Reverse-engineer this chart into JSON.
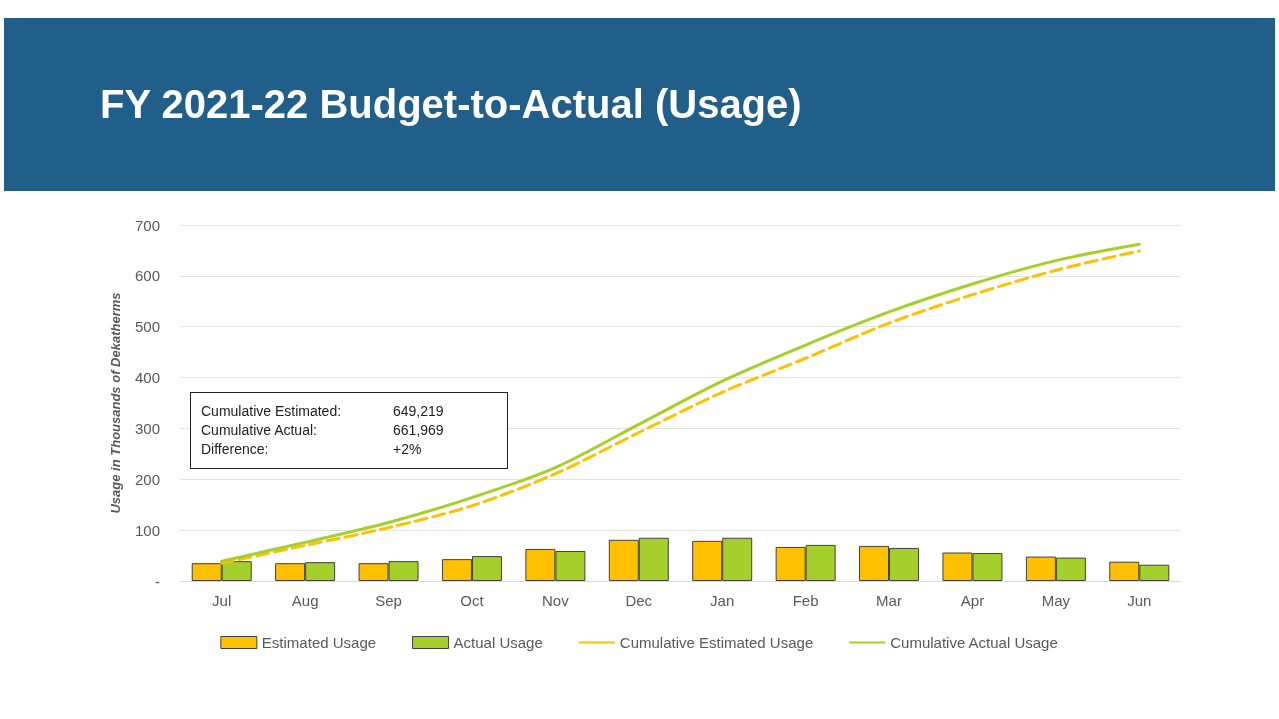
{
  "chart_data": {
    "type": "bar",
    "title": "FY 2021-22 Budget-to-Actual (Usage)",
    "ylabel": "Usage in Thousands of Dekatherms",
    "categories": [
      "Jul",
      "Aug",
      "Sep",
      "Oct",
      "Nov",
      "Dec",
      "Jan",
      "Feb",
      "Mar",
      "Apr",
      "May",
      "Jun"
    ],
    "series": [
      {
        "name": "Estimated Usage",
        "color": "#ffc000",
        "values": [
          35,
          35,
          35,
          43,
          63,
          81,
          79,
          67,
          69,
          56,
          48,
          38
        ]
      },
      {
        "name": "Actual Usage",
        "color": "#a5cf2a",
        "values": [
          39,
          37,
          39,
          49,
          59,
          85,
          85,
          71,
          65,
          55,
          46,
          32
        ]
      },
      {
        "name": "Cumulative Estimated Usage",
        "type": "line",
        "line_style": "dashed",
        "color": "#ffc000",
        "values": [
          35,
          70,
          105,
          148,
          211,
          292,
          371,
          438,
          507,
          563,
          611,
          649
        ]
      },
      {
        "name": "Cumulative Actual Usage",
        "type": "line",
        "line_style": "solid",
        "color": "#a5cf2a",
        "values": [
          39,
          76,
          115,
          164,
          223,
          308,
          393,
          464,
          529,
          584,
          630,
          662
        ]
      }
    ],
    "ylim": [
      0,
      700
    ],
    "yticks": [
      {
        "value": 0,
        "label": "-"
      },
      100,
      200,
      300,
      400,
      500,
      600,
      700
    ],
    "grid": "y",
    "legend": "bottom",
    "marker": "none",
    "annotations": [
      "Cumulative Estimated:\t649,219",
      "Cumulative Actual:\t661,969",
      "Difference:\t+2%"
    ]
  }
}
